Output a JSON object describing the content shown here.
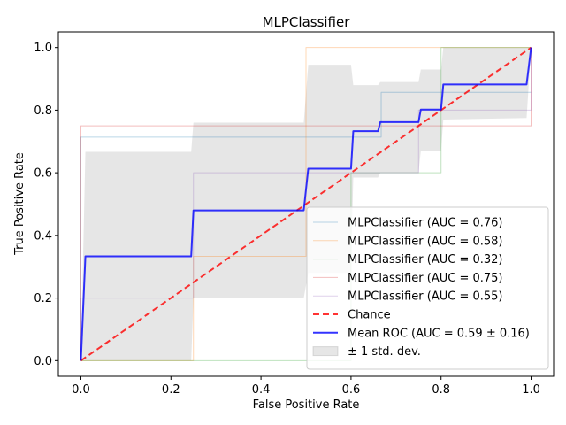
{
  "chart_data": {
    "type": "line",
    "title": "MLPClassifier",
    "xlabel": "False Positive Rate",
    "ylabel": "True Positive Rate",
    "xlim": [
      -0.05,
      1.05
    ],
    "ylim": [
      -0.05,
      1.05
    ],
    "xticks": [
      0.0,
      0.2,
      0.4,
      0.6,
      0.8,
      1.0
    ],
    "yticks": [
      0.0,
      0.2,
      0.4,
      0.6,
      0.8,
      1.0
    ],
    "xtick_labels": [
      "0.0",
      "0.2",
      "0.4",
      "0.6",
      "0.8",
      "1.0"
    ],
    "ytick_labels": [
      "0.0",
      "0.2",
      "0.4",
      "0.6",
      "0.8",
      "1.0"
    ],
    "grid": false,
    "legend_position": "lower right",
    "series": [
      {
        "name": "MLPClassifier (AUC = 0.76)",
        "color": "#1f77b4",
        "opacity": 0.3,
        "linewidth": 1,
        "dash": "",
        "x": [
          0,
          0,
          0.667,
          0.667,
          1
        ],
        "y": [
          0,
          0.714,
          0.714,
          0.857,
          0.857
        ]
      },
      {
        "name": "MLPClassifier (AUC = 0.58)",
        "color": "#ff7f0e",
        "opacity": 0.3,
        "linewidth": 1,
        "dash": "",
        "x": [
          0,
          0.25,
          0.25,
          0.5,
          0.5,
          1
        ],
        "y": [
          0,
          0,
          0.333,
          0.333,
          1.0,
          1.0
        ]
      },
      {
        "name": "MLPClassifier (AUC = 0.32)",
        "color": "#2ca02c",
        "opacity": 0.3,
        "linewidth": 1,
        "dash": "",
        "x": [
          0,
          0.6,
          0.6,
          0.8,
          0.8,
          1
        ],
        "y": [
          0,
          0,
          0.6,
          0.6,
          1.0,
          1.0
        ]
      },
      {
        "name": "MLPClassifier (AUC = 0.75)",
        "color": "#d62728",
        "opacity": 0.3,
        "linewidth": 1,
        "dash": "",
        "x": [
          0,
          0,
          1,
          1
        ],
        "y": [
          0,
          0.75,
          0.75,
          1.0
        ]
      },
      {
        "name": "MLPClassifier (AUC = 0.55)",
        "color": "#9467bd",
        "opacity": 0.3,
        "linewidth": 1,
        "dash": "",
        "x": [
          0,
          0,
          0.25,
          0.25,
          0.75,
          0.75,
          1,
          1
        ],
        "y": [
          0,
          0.2,
          0.2,
          0.6,
          0.6,
          0.8,
          0.8,
          1.0
        ]
      },
      {
        "name": "Chance",
        "color": "#ff0000",
        "opacity": 0.8,
        "linewidth": 2,
        "dash": "7,4",
        "x": [
          0,
          1
        ],
        "y": [
          0,
          1
        ]
      },
      {
        "name": "Mean ROC (AUC = 0.59 ± 0.16)",
        "color": "#0000ff",
        "opacity": 0.8,
        "linewidth": 2,
        "dash": "",
        "x": [
          0,
          0.01,
          0.01,
          0.245,
          0.25,
          0.25,
          0.495,
          0.505,
          0.6,
          0.605,
          0.66,
          0.665,
          0.75,
          0.755,
          0.8,
          0.805,
          0.99,
          1.0
        ],
        "y": [
          0,
          0.333,
          0.333,
          0.333,
          0.48,
          0.48,
          0.48,
          0.613,
          0.613,
          0.733,
          0.733,
          0.762,
          0.762,
          0.802,
          0.802,
          0.882,
          0.882,
          1.0
        ]
      }
    ],
    "band": {
      "name": "± 1 std. dev.",
      "color": "#808080",
      "opacity": 0.2,
      "x": [
        0,
        0.01,
        0.01,
        0.245,
        0.25,
        0.495,
        0.505,
        0.6,
        0.605,
        0.66,
        0.665,
        0.75,
        0.755,
        0.8,
        0.805,
        0.99,
        1.0
      ],
      "upper": [
        0,
        0.667,
        0.667,
        0.667,
        0.76,
        0.76,
        0.945,
        0.945,
        0.88,
        0.88,
        0.89,
        0.89,
        0.93,
        0.93,
        1.0,
        1.0,
        1.0
      ],
      "lower": [
        0,
        0,
        0,
        0,
        0.2,
        0.2,
        0.28,
        0.28,
        0.585,
        0.585,
        0.6,
        0.6,
        0.67,
        0.67,
        0.77,
        0.775,
        1.0
      ]
    }
  }
}
